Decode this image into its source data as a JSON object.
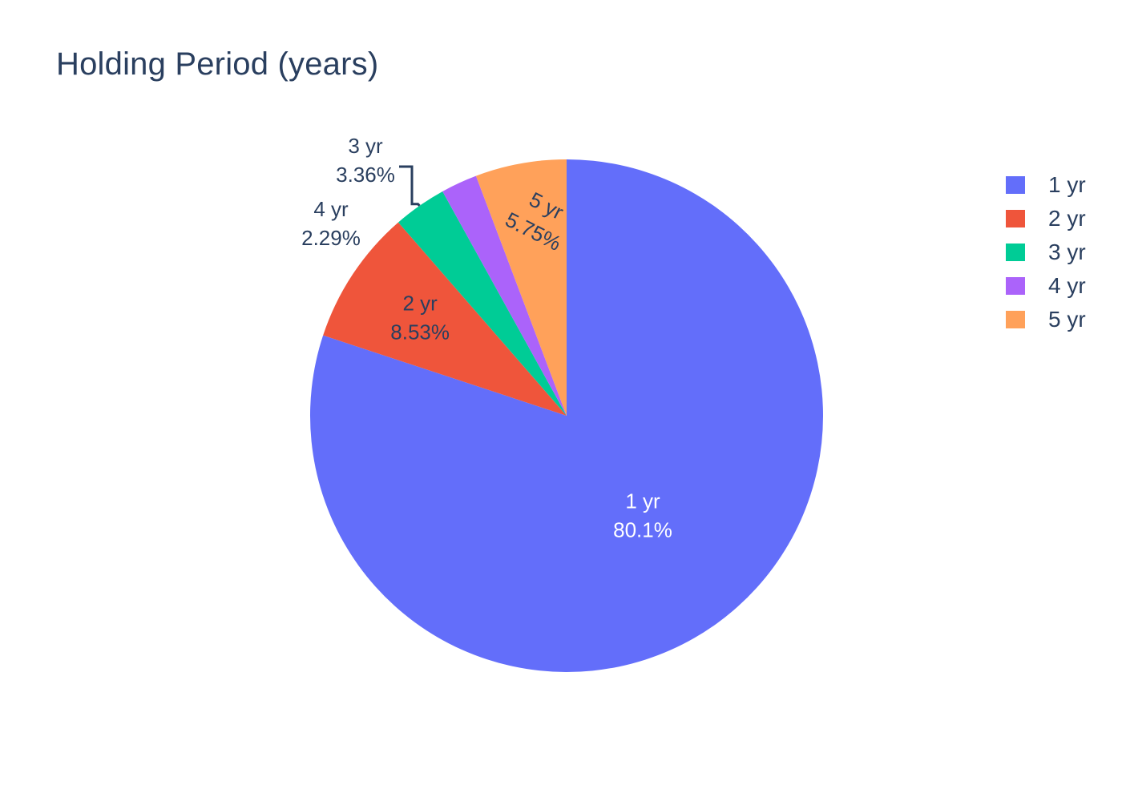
{
  "chart_data": {
    "type": "pie",
    "title": "Holding Period (years)",
    "labels": [
      "1 yr",
      "2 yr",
      "3 yr",
      "4 yr",
      "5 yr"
    ],
    "percent_labels": [
      "80.1%",
      "8.53%",
      "3.36%",
      "2.29%",
      "5.75%"
    ],
    "values": [
      80.1,
      8.53,
      3.36,
      2.29,
      5.75
    ],
    "colors": [
      "#636efa",
      "#ef553b",
      "#00cc96",
      "#ab63fa",
      "#ffa15a"
    ],
    "direction": "clockwise",
    "start": "top",
    "legend": {
      "position": "right",
      "entries": [
        "1 yr",
        "2 yr",
        "3 yr",
        "4 yr",
        "5 yr"
      ]
    }
  }
}
